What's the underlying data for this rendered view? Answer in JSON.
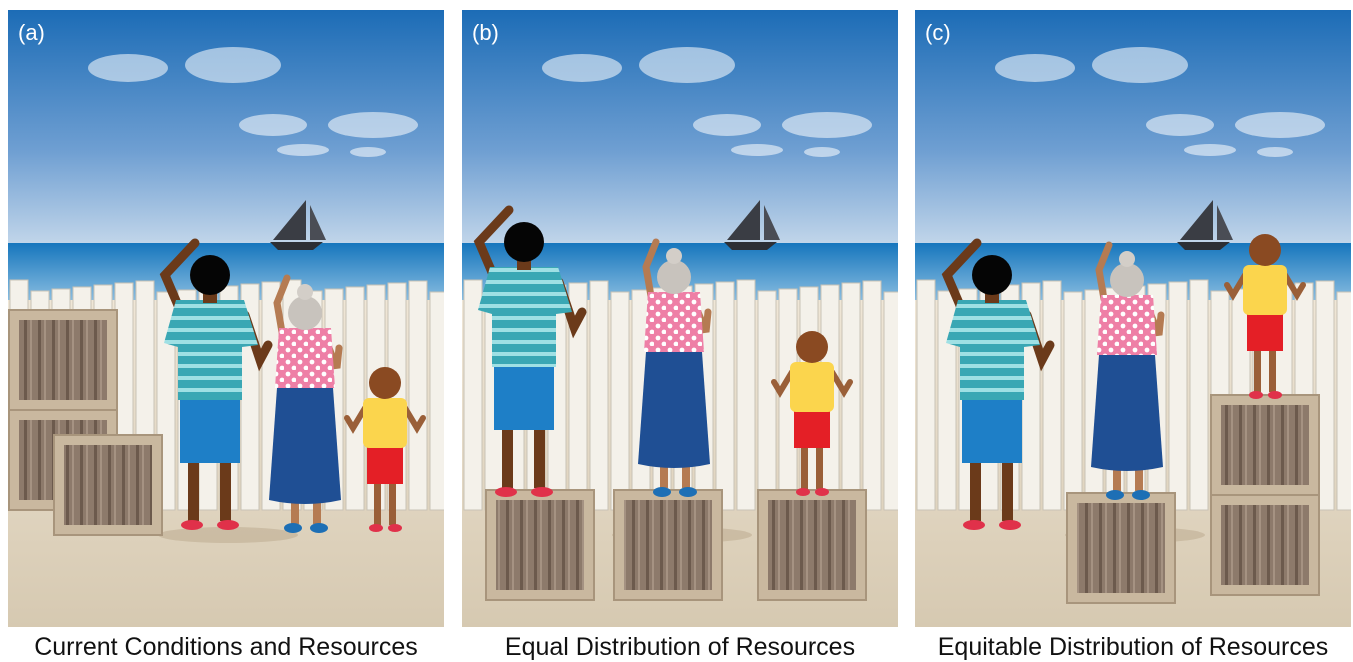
{
  "panels": [
    {
      "label": "(a)",
      "caption": "Current Conditions and Resources"
    },
    {
      "label": "(b)",
      "caption": "Equal Distribution of Resources"
    },
    {
      "label": "(c)",
      "caption": "Equitable Distribution of Resources"
    }
  ]
}
